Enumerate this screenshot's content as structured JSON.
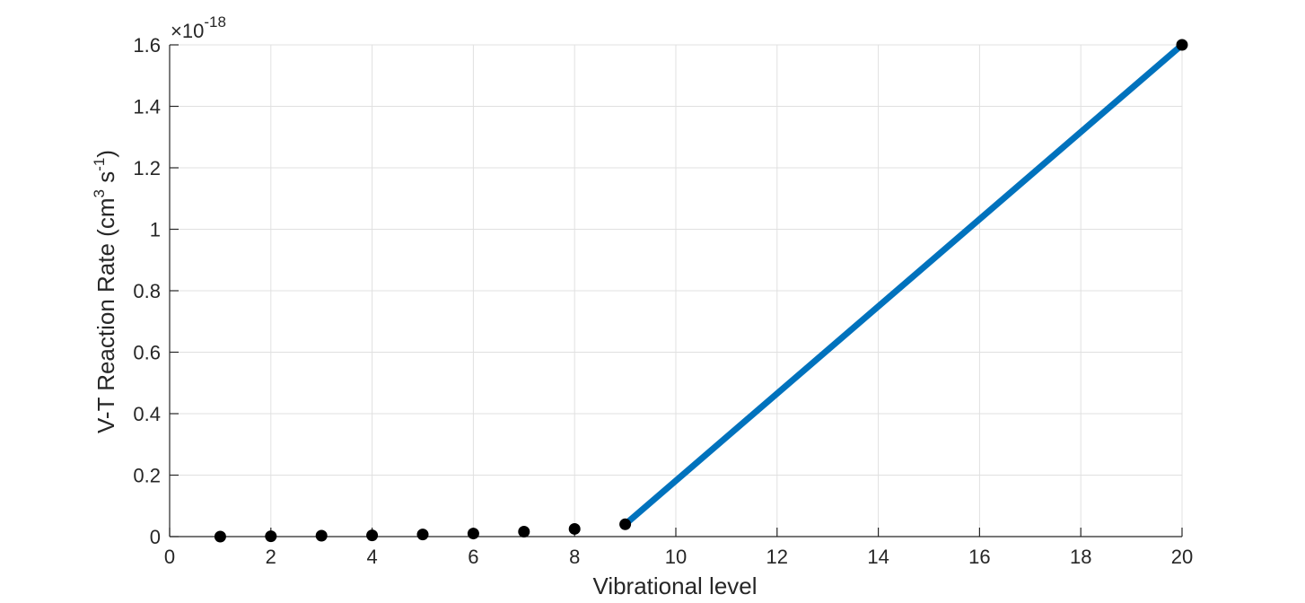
{
  "chart_data": {
    "type": "scatter",
    "title": "",
    "xlabel": "Vibrational level",
    "ylabel": {
      "main": "V-T Reaction Rate (cm",
      "sup1": "3",
      "mid": " s",
      "sup2": "-1",
      "end": ")"
    },
    "y_exponent": {
      "prefix": "×10",
      "power": "-18"
    },
    "xlim": [
      0,
      20
    ],
    "ylim": [
      0,
      1.6
    ],
    "x_ticks": [
      0,
      2,
      4,
      6,
      8,
      10,
      12,
      14,
      16,
      18,
      20
    ],
    "x_tick_labels": [
      "0",
      "2",
      "4",
      "6",
      "8",
      "10",
      "12",
      "14",
      "16",
      "18",
      "20"
    ],
    "y_ticks": [
      0,
      0.2,
      0.4,
      0.6,
      0.8,
      1.0,
      1.2,
      1.4,
      1.6
    ],
    "y_tick_labels": [
      "0",
      "0.2",
      "0.4",
      "0.6",
      "0.8",
      "1",
      "1.2",
      "1.4",
      "1.6"
    ],
    "grid": true,
    "series": [
      {
        "kind": "points",
        "color": "#000000",
        "x": [
          1,
          2,
          3,
          4,
          5,
          6,
          7,
          8,
          9,
          20
        ],
        "y": [
          0.0,
          0.001,
          0.003,
          0.004,
          0.007,
          0.01,
          0.016,
          0.025,
          0.04,
          1.6
        ]
      },
      {
        "kind": "line",
        "color": "#0072BD",
        "x": [
          9,
          20
        ],
        "y": [
          0.04,
          1.6
        ]
      }
    ]
  }
}
